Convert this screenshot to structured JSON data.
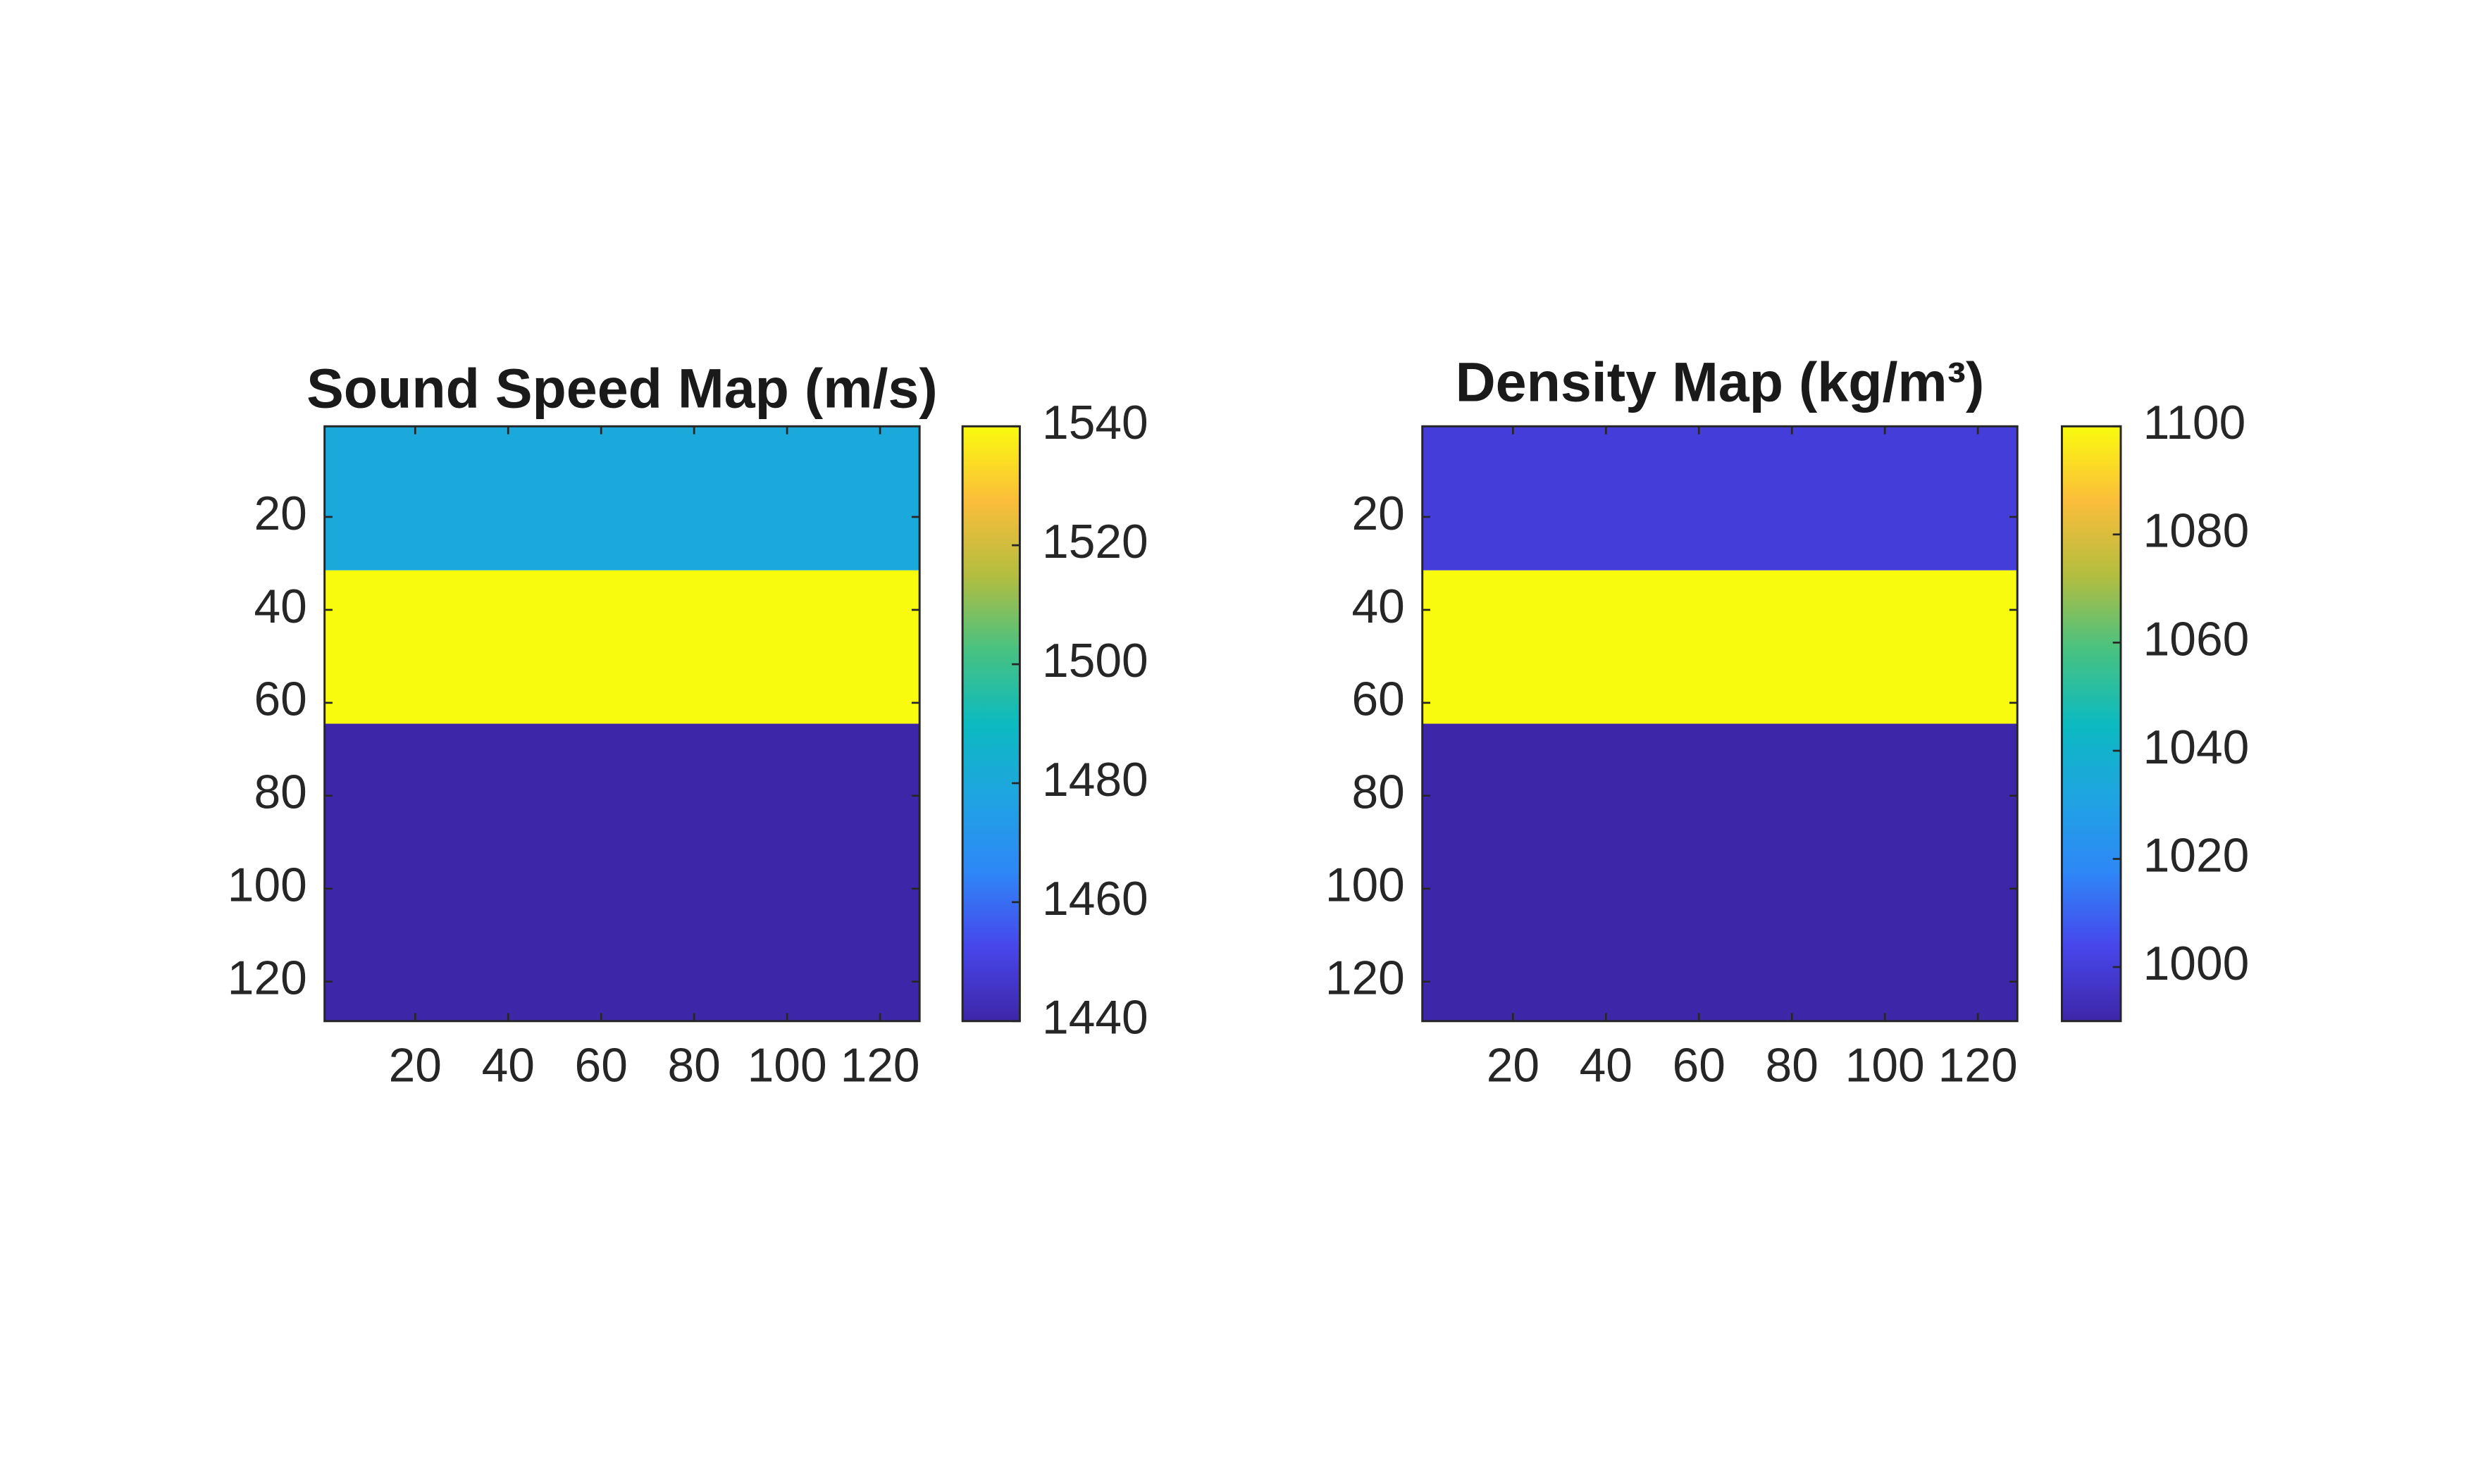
{
  "chart_data": [
    {
      "type": "heatmap",
      "title": "Sound Speed Map (m/s)",
      "colormap": "parula",
      "xlim": [
        0.5,
        128.5
      ],
      "xticks": [
        20,
        40,
        60,
        80,
        100,
        120
      ],
      "ylim": [
        0.5,
        128.5
      ],
      "yticks": [
        20,
        40,
        60,
        80,
        100,
        120
      ],
      "y_reversed": true,
      "y_edges": [
        0.5,
        31.5,
        64.5,
        128.5
      ],
      "values": [
        1480,
        1540,
        1440
      ],
      "clim": [
        1440,
        1540
      ],
      "cticks": [
        1440,
        1460,
        1480,
        1500,
        1520,
        1540
      ]
    },
    {
      "type": "heatmap",
      "title": "Density  Map  (kg/m³)",
      "colormap": "parula",
      "xlim": [
        0.5,
        128.5
      ],
      "xticks": [
        20,
        40,
        60,
        80,
        100,
        120
      ],
      "ylim": [
        0.5,
        128.5
      ],
      "yticks": [
        20,
        40,
        60,
        80,
        100,
        120
      ],
      "y_reversed": true,
      "y_edges": [
        0.5,
        31.5,
        64.5,
        128.5
      ],
      "values": [
        1000,
        1100,
        990
      ],
      "clim": [
        990,
        1100
      ],
      "cticks": [
        1000,
        1020,
        1040,
        1060,
        1080,
        1100
      ]
    }
  ]
}
